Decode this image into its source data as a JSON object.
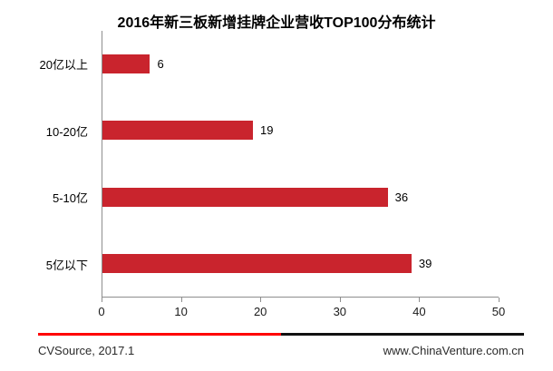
{
  "title": "2016年新三板新增挂牌企业营收TOP100分布统计",
  "chart_data": {
    "type": "bar",
    "orientation": "horizontal",
    "title": "2016年新三板新增挂牌企业营收TOP100分布统计",
    "categories": [
      "20亿以上",
      "10-20亿",
      "5-10亿",
      "5亿以下"
    ],
    "values": [
      6,
      19,
      36,
      39
    ],
    "xlabel": "",
    "ylabel": "",
    "xlim": [
      0,
      50
    ],
    "xticks": [
      0,
      10,
      20,
      30,
      40,
      50
    ],
    "grid": false,
    "legend": "none",
    "data_labels": true,
    "bar_color": "#C9242D"
  },
  "colors": {
    "bar": "#C9242D",
    "axis": "#8e8e8e",
    "divider_red": "#FF0000",
    "divider_black": "#111111",
    "background": "#FFFFFF",
    "text": "#000000"
  },
  "footer": {
    "source_label": "CVSource, 2017.1",
    "website_label": "www.ChinaVenture.com.cn"
  }
}
